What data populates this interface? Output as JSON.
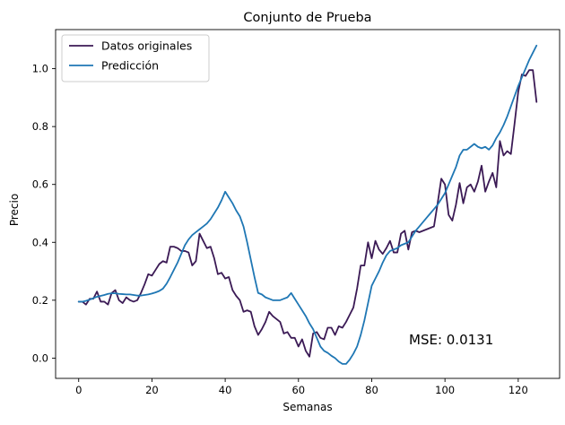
{
  "chart_data": {
    "type": "line",
    "title": "Conjunto de Prueba",
    "xlabel": "Semanas",
    "ylabel": "Precio",
    "xlim": [
      -6.3,
      131.3
    ],
    "ylim": [
      -0.07,
      1.135
    ],
    "xticks": [
      0,
      20,
      40,
      60,
      80,
      100,
      120
    ],
    "xtick_labels": [
      "0",
      "20",
      "40",
      "60",
      "80",
      "100",
      "120"
    ],
    "yticks": [
      0.0,
      0.2,
      0.4,
      0.6,
      0.8,
      1.0
    ],
    "ytick_labels": [
      "0.0",
      "0.2",
      "0.4",
      "0.6",
      "0.8",
      "1.0"
    ],
    "grid": false,
    "legend_position": "top-left",
    "annotation": "MSE: 0.0131",
    "series": [
      {
        "name": "Datos originales",
        "color": "#3b1a55",
        "values": [
          0.195,
          0.195,
          0.185,
          0.205,
          0.205,
          0.23,
          0.195,
          0.195,
          0.185,
          0.225,
          0.235,
          0.2,
          0.19,
          0.21,
          0.2,
          0.195,
          0.2,
          0.225,
          0.255,
          0.29,
          0.285,
          0.305,
          0.325,
          0.335,
          0.33,
          0.385,
          0.385,
          0.38,
          0.37,
          0.37,
          0.365,
          0.32,
          0.335,
          0.43,
          0.405,
          0.38,
          0.385,
          0.345,
          0.29,
          0.295,
          0.275,
          0.28,
          0.235,
          0.215,
          0.2,
          0.16,
          0.165,
          0.16,
          0.11,
          0.08,
          0.1,
          0.125,
          0.16,
          0.145,
          0.135,
          0.125,
          0.085,
          0.09,
          0.07,
          0.07,
          0.04,
          0.065,
          0.025,
          0.005,
          0.085,
          0.09,
          0.07,
          0.065,
          0.105,
          0.105,
          0.08,
          0.11,
          0.105,
          0.125,
          0.15,
          0.175,
          0.24,
          0.32,
          0.32,
          0.4,
          0.345,
          0.405,
          0.375,
          0.36,
          0.38,
          0.405,
          0.365,
          0.365,
          0.43,
          0.44,
          0.375,
          0.435,
          0.44,
          0.435,
          0.44,
          0.445,
          0.45,
          0.455,
          0.535,
          0.62,
          0.6,
          0.495,
          0.475,
          0.53,
          0.605,
          0.535,
          0.59,
          0.6,
          0.575,
          0.61,
          0.665,
          0.575,
          0.61,
          0.64,
          0.59,
          0.75,
          0.7,
          0.715,
          0.705,
          0.81,
          0.92,
          0.98,
          0.975,
          0.995,
          0.995,
          0.885
        ]
      },
      {
        "name": "Predicción",
        "color": "#1f77b4",
        "values": [
          0.195,
          0.195,
          0.198,
          0.202,
          0.207,
          0.212,
          0.215,
          0.218,
          0.222,
          0.224,
          0.224,
          0.222,
          0.221,
          0.22,
          0.22,
          0.218,
          0.216,
          0.216,
          0.218,
          0.22,
          0.223,
          0.227,
          0.232,
          0.24,
          0.257,
          0.28,
          0.305,
          0.33,
          0.36,
          0.39,
          0.41,
          0.425,
          0.435,
          0.445,
          0.455,
          0.465,
          0.48,
          0.5,
          0.52,
          0.545,
          0.575,
          0.555,
          0.535,
          0.51,
          0.49,
          0.455,
          0.4,
          0.34,
          0.28,
          0.225,
          0.22,
          0.21,
          0.205,
          0.2,
          0.2,
          0.2,
          0.205,
          0.21,
          0.225,
          0.205,
          0.185,
          0.165,
          0.145,
          0.12,
          0.1,
          0.07,
          0.04,
          0.025,
          0.018,
          0.008,
          0.0,
          -0.012,
          -0.02,
          -0.02,
          -0.005,
          0.015,
          0.04,
          0.08,
          0.13,
          0.19,
          0.25,
          0.275,
          0.3,
          0.33,
          0.355,
          0.37,
          0.375,
          0.38,
          0.39,
          0.395,
          0.4,
          0.42,
          0.44,
          0.455,
          0.47,
          0.485,
          0.5,
          0.515,
          0.53,
          0.55,
          0.57,
          0.6,
          0.63,
          0.66,
          0.7,
          0.72,
          0.72,
          0.73,
          0.74,
          0.73,
          0.725,
          0.73,
          0.72,
          0.735,
          0.76,
          0.78,
          0.805,
          0.835,
          0.87,
          0.905,
          0.94,
          0.97,
          1.0,
          1.03,
          1.055,
          1.08
        ]
      }
    ]
  }
}
